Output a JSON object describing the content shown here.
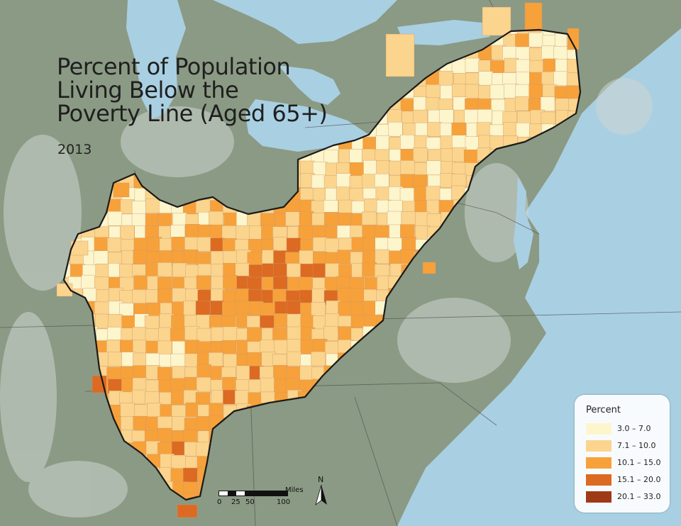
{
  "title_lines": [
    "Percent of Population",
    "Living Below the",
    "Poverty Line (Aged 65+)"
  ],
  "year": "2013",
  "legend": {
    "title": "Percent",
    "items": [
      {
        "label": "3.0 – 7.0",
        "color": "#fdf5cc"
      },
      {
        "label": "7.1 – 10.0",
        "color": "#fbd48d"
      },
      {
        "label": "10.1 – 15.0",
        "color": "#f7a13b"
      },
      {
        "label": "15.1 – 20.0",
        "color": "#dc6a22"
      },
      {
        "label": "20.1 – 33.0",
        "color": "#9f3a17"
      }
    ]
  },
  "scale_bar": {
    "unit": "Miles",
    "ticks": [
      "0",
      "25",
      "50",
      "100"
    ]
  },
  "north_arrow": {
    "letter": "N",
    "icon": "north-arrow-icon"
  },
  "colors": {
    "water": "#a9cfe2",
    "land": "#8b9a84",
    "urban": "#d9dfdd",
    "boundary": "#1a1a1a"
  }
}
